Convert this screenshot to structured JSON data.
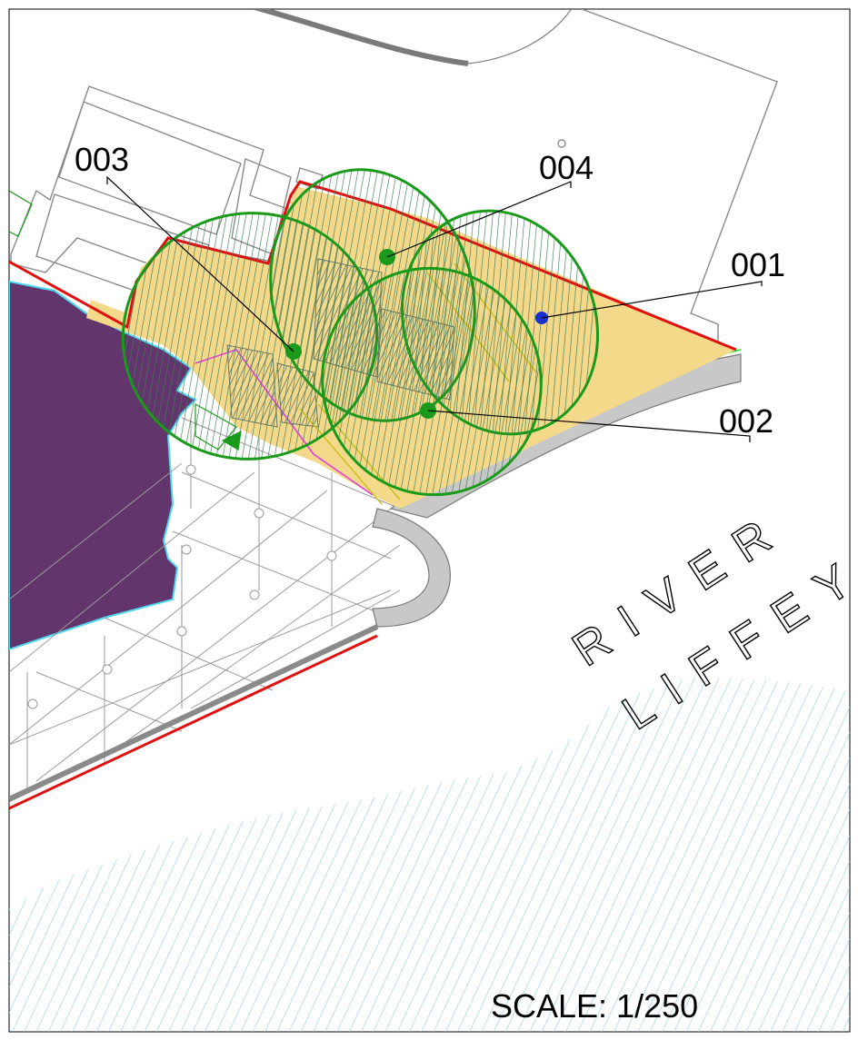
{
  "map": {
    "tree_labels": [
      {
        "id": "001",
        "text": "001"
      },
      {
        "id": "002",
        "text": "002"
      },
      {
        "id": "003",
        "text": "003"
      },
      {
        "id": "004",
        "text": "004"
      }
    ],
    "river_line1": "RIVER",
    "river_line2": "LIFFEY",
    "scale_text": "SCALE: 1/250"
  },
  "colors": {
    "building_purple": "#62356d",
    "tree_green": "#1a9a1a",
    "boundary_red": "#e01010",
    "site_fill_yellow": "#f5d98a",
    "water_hatch_blue": "#8fd0e3",
    "outline_grey": "#8a8a8a",
    "path_grey": "#c8c8c8",
    "point_blue": "#1a2fd0"
  }
}
